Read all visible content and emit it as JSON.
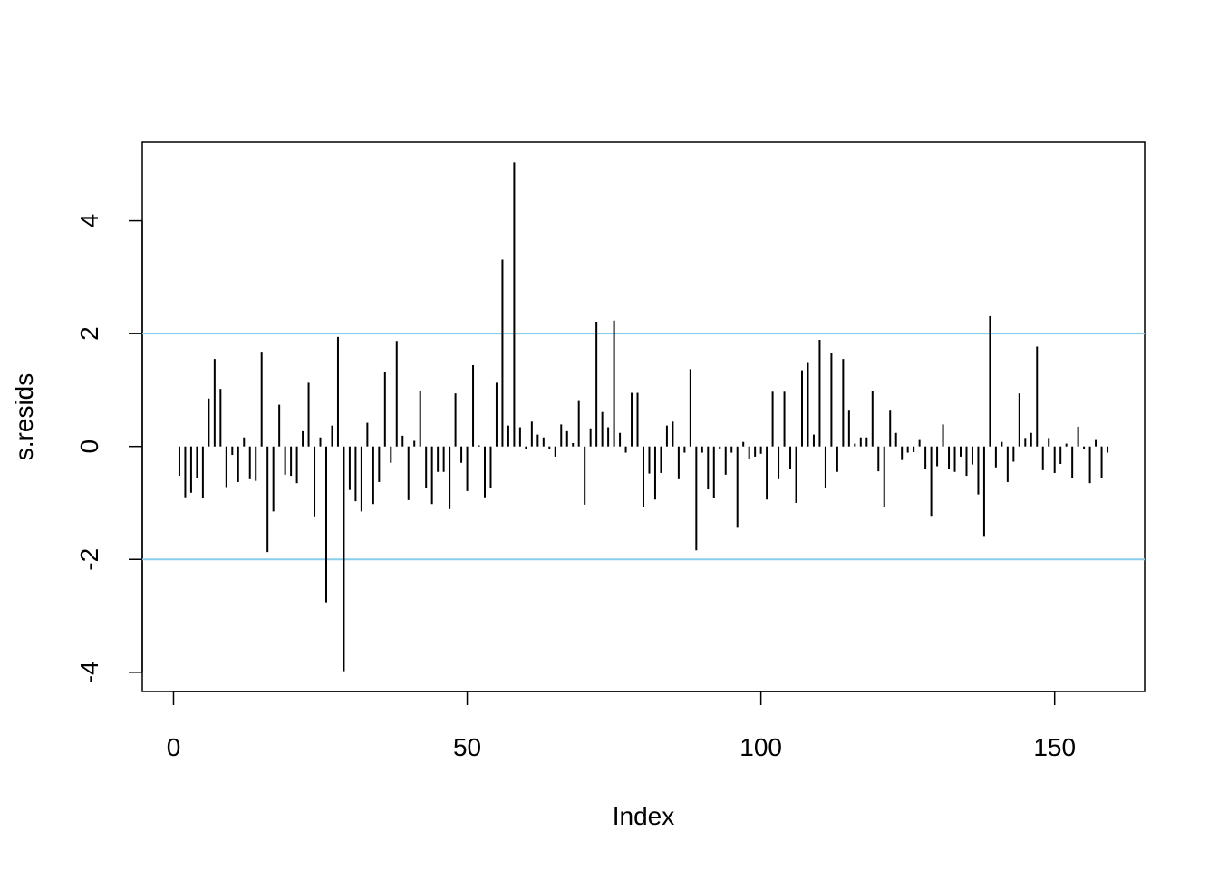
{
  "chart_data": {
    "type": "h",
    "xlabel": "Index",
    "ylabel": "s.resids",
    "x": [
      1,
      2,
      3,
      4,
      5,
      6,
      7,
      8,
      9,
      10,
      11,
      12,
      13,
      14,
      15,
      16,
      17,
      18,
      19,
      20,
      21,
      22,
      23,
      24,
      25,
      26,
      27,
      28,
      29,
      30,
      31,
      32,
      33,
      34,
      35,
      36,
      37,
      38,
      39,
      40,
      41,
      42,
      43,
      44,
      45,
      46,
      47,
      48,
      49,
      50,
      51,
      52,
      53,
      54,
      55,
      56,
      57,
      58,
      59,
      60,
      61,
      62,
      63,
      64,
      65,
      66,
      67,
      68,
      69,
      70,
      71,
      72,
      73,
      74,
      75,
      76,
      77,
      78,
      79,
      80,
      81,
      82,
      83,
      84,
      85,
      86,
      87,
      88,
      89,
      90,
      91,
      92,
      93,
      94,
      95,
      96,
      97,
      98,
      99,
      100,
      101,
      102,
      103,
      104,
      105,
      106,
      107,
      108,
      109,
      110,
      111,
      112,
      113,
      114,
      115,
      116,
      117,
      118,
      119,
      120,
      121,
      122,
      123,
      124,
      125,
      126,
      127,
      128,
      129,
      130,
      131,
      132,
      133,
      134,
      135,
      136,
      137,
      138,
      139,
      140,
      141,
      142,
      143,
      144,
      145,
      146,
      147,
      148,
      149,
      150,
      151,
      152,
      153,
      154,
      155,
      156,
      157,
      158,
      159
    ],
    "values": [
      -0.52,
      -0.9,
      -0.82,
      -0.56,
      -0.92,
      0.85,
      1.55,
      1.02,
      -0.72,
      -0.15,
      -0.63,
      0.16,
      -0.58,
      -0.61,
      1.68,
      -1.87,
      -1.15,
      0.74,
      -0.5,
      -0.52,
      -0.65,
      0.27,
      1.13,
      -1.24,
      0.16,
      -2.76,
      0.37,
      1.94,
      -3.98,
      -0.77,
      -0.97,
      -1.15,
      0.42,
      -1.02,
      -0.63,
      1.32,
      -0.29,
      1.87,
      0.19,
      -0.95,
      0.1,
      0.98,
      -0.74,
      -1.02,
      -0.45,
      -0.45,
      -1.11,
      0.94,
      -0.29,
      -0.79,
      1.44,
      0.02,
      -0.9,
      -0.73,
      1.13,
      3.31,
      0.37,
      5.03,
      0.34,
      -0.05,
      0.44,
      0.21,
      0.16,
      -0.05,
      -0.18,
      0.39,
      0.27,
      0.06,
      0.82,
      -1.03,
      0.32,
      2.21,
      0.61,
      0.34,
      2.23,
      0.24,
      -0.11,
      0.95,
      0.95,
      -1.08,
      -0.48,
      -0.94,
      -0.47,
      0.37,
      0.44,
      -0.58,
      -0.11,
      1.37,
      -1.84,
      -0.11,
      -0.76,
      -0.92,
      -0.05,
      -0.5,
      -0.11,
      -1.44,
      0.08,
      -0.23,
      -0.18,
      -0.13,
      -0.94,
      0.97,
      -0.58,
      0.97,
      -0.39,
      -1.0,
      1.35,
      1.48,
      0.21,
      1.89,
      -0.73,
      1.66,
      -0.45,
      1.55,
      0.65,
      0.05,
      0.16,
      0.16,
      0.98,
      -0.44,
      -1.08,
      0.65,
      0.24,
      -0.24,
      -0.11,
      -0.1,
      0.13,
      -0.39,
      -1.23,
      -0.35,
      0.39,
      -0.4,
      -0.45,
      -0.18,
      -0.52,
      -0.32,
      -0.85,
      -1.6,
      2.31,
      -0.37,
      0.08,
      -0.63,
      -0.27,
      0.94,
      0.15,
      0.24,
      1.77,
      -0.42,
      0.15,
      -0.47,
      -0.31,
      0.05,
      -0.56,
      0.35,
      -0.05,
      -0.65,
      0.13,
      -0.56,
      -0.11
    ],
    "color": "#000000",
    "hlines": [
      2,
      -2
    ],
    "hline_color": "#87ceeb",
    "xlim": [
      -5.32,
      165.32
    ],
    "ylim": [
      -4.34,
      5.39
    ],
    "xticks": [
      0,
      50,
      100,
      150
    ],
    "yticks": [
      -4,
      -2,
      0,
      2,
      4
    ]
  }
}
